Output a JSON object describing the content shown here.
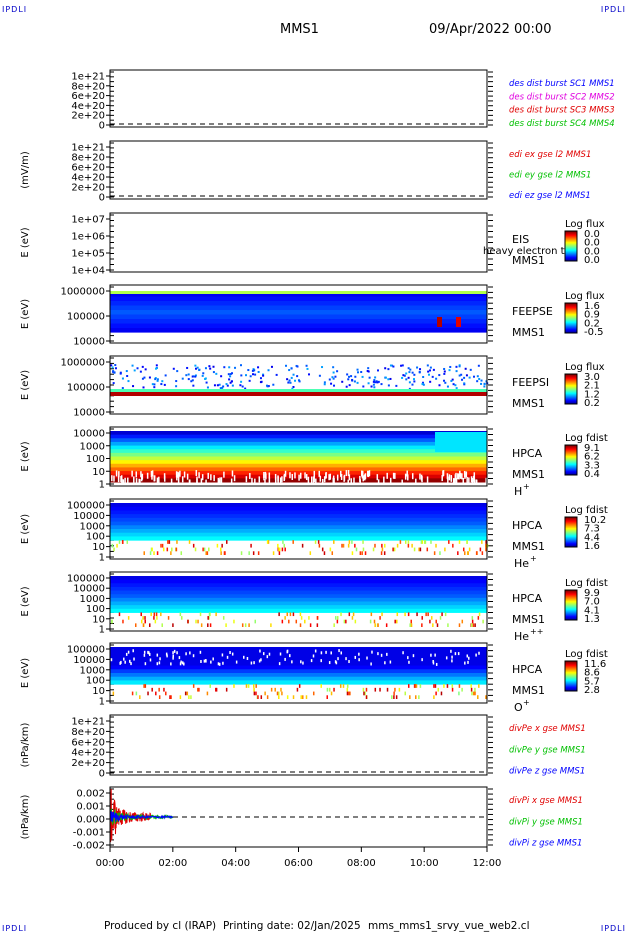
{
  "corners": {
    "top_left": "IPDLI",
    "top_right": "IPDLI",
    "bottom_left": "IPDLI",
    "bottom_right": "IPDLI"
  },
  "header": {
    "spacecraft": "MMS1",
    "date": "09/Apr/2022 00:00"
  },
  "footer": {
    "producer": "Produced by cl (IRAP)",
    "printing_date": "Printing date: 02/Jan/2025",
    "script": "mms_mms1_srvy_vue_web2.cl"
  },
  "colors": {
    "cl_blue": "#0000c8",
    "red": "#e00000",
    "green": "#00c000",
    "magenta": "#e000e0",
    "blue": "#0000ff"
  },
  "chart_data": [
    {
      "type": "line",
      "panel": "des-dist-burst",
      "ylabel": "",
      "yticks": [
        "1e+21",
        "8e+20",
        "6e+20",
        "4e+20",
        "2e+20",
        "0"
      ],
      "ylim": [
        0,
        1e+21
      ],
      "legend": [
        {
          "text": "des dist burst SC1 MMS1",
          "color": "#0000ff"
        },
        {
          "text": "des dist burst SC2 MMS2",
          "color": "#e000e0"
        },
        {
          "text": "des dist burst SC3 MMS3",
          "color": "#e00000"
        },
        {
          "text": "des dist burst SC4 MMS4",
          "color": "#00c000"
        }
      ],
      "series": [],
      "zero_line": true
    },
    {
      "type": "line",
      "panel": "edi-e-gse",
      "ylabel": "(mV/m)",
      "yticks": [
        "1e+21",
        "8e+20",
        "6e+20",
        "4e+20",
        "2e+20",
        "0"
      ],
      "ylim": [
        0,
        1e+21
      ],
      "legend": [
        {
          "text": "edi ex gse l2 MMS1",
          "color": "#e00000"
        },
        {
          "text": "edi ey gse l2 MMS1",
          "color": "#00c000"
        },
        {
          "text": "edi ez gse l2 MMS1",
          "color": "#0000ff"
        }
      ],
      "series": [],
      "zero_line": true
    },
    {
      "type": "heatmap",
      "panel": "eis",
      "ylabel": "E (eV)",
      "yticks": [
        "1e+07",
        "1e+06",
        "1e+05",
        "1e+04"
      ],
      "labels": [
        "EIS",
        "MMS1"
      ],
      "overlay_text": "heavy electron to",
      "colorbar": {
        "title": "Log flux",
        "ticks": [
          "0.0",
          "0.0",
          "0.0",
          "0.0"
        ]
      }
    },
    {
      "type": "heatmap",
      "panel": "feeps-e",
      "ylabel": "E (eV)",
      "yticks": [
        "1000000",
        "100000",
        "10000"
      ],
      "labels": [
        "FEEPSE",
        "MMS1"
      ],
      "colorbar": {
        "title": "Log flux",
        "ticks": [
          "1.6",
          "0.9",
          "0.2",
          "-0.5"
        ]
      }
    },
    {
      "type": "heatmap",
      "panel": "feeps-i",
      "ylabel": "E (eV)",
      "yticks": [
        "1000000",
        "100000",
        "10000"
      ],
      "labels": [
        "FEEPSI",
        "MMS1"
      ],
      "colorbar": {
        "title": "Log flux",
        "ticks": [
          "3.0",
          "2.1",
          "1.2",
          "0.2"
        ]
      }
    },
    {
      "type": "heatmap",
      "panel": "hpca-h",
      "ylabel": "E (eV)",
      "yticks": [
        "10000",
        "1000",
        "100",
        "10",
        "1"
      ],
      "labels": [
        "HPCA",
        "MMS1"
      ],
      "species": "H",
      "charge": "+",
      "colorbar": {
        "title": "Log fdist",
        "ticks": [
          "9.1",
          "6.2",
          "3.3",
          "0.4"
        ]
      }
    },
    {
      "type": "heatmap",
      "panel": "hpca-he",
      "ylabel": "E (eV)",
      "yticks": [
        "100000",
        "10000",
        "1000",
        "100",
        "10",
        "1"
      ],
      "labels": [
        "HPCA",
        "MMS1"
      ],
      "species": "He",
      "charge": "+",
      "colorbar": {
        "title": "Log fdist",
        "ticks": [
          "10.2",
          "7.3",
          "4.4",
          "1.6"
        ]
      }
    },
    {
      "type": "heatmap",
      "panel": "hpca-he2",
      "ylabel": "E (eV)",
      "yticks": [
        "100000",
        "10000",
        "1000",
        "100",
        "10",
        "1"
      ],
      "labels": [
        "HPCA",
        "MMS1"
      ],
      "species": "He",
      "charge": "++",
      "colorbar": {
        "title": "Log fdist",
        "ticks": [
          "9.9",
          "7.0",
          "4.1",
          "1.3"
        ]
      }
    },
    {
      "type": "heatmap",
      "panel": "hpca-o",
      "ylabel": "E (eV)",
      "yticks": [
        "100000",
        "10000",
        "1000",
        "100",
        "10",
        "1"
      ],
      "labels": [
        "HPCA",
        "MMS1"
      ],
      "species": "O",
      "charge": "+",
      "colorbar": {
        "title": "Log fdist",
        "ticks": [
          "11.6",
          "8.6",
          "5.7",
          "2.8"
        ]
      }
    },
    {
      "type": "line",
      "panel": "divpe",
      "ylabel": "(nPa/km)",
      "yticks": [
        "1e+21",
        "8e+20",
        "6e+20",
        "4e+20",
        "2e+20",
        "0"
      ],
      "ylim": [
        0,
        1e+21
      ],
      "legend": [
        {
          "text": "divPe x gse MMS1",
          "color": "#e00000"
        },
        {
          "text": "divPe y gse MMS1",
          "color": "#00c000"
        },
        {
          "text": "divPe z gse MMS1",
          "color": "#0000ff"
        }
      ],
      "series": [],
      "zero_line": true
    },
    {
      "type": "line",
      "panel": "divpi",
      "ylabel": "(nPa/km)",
      "yticks": [
        "0.002",
        "0.001",
        "0.000",
        "-0.001",
        "-0.002"
      ],
      "ylim": [
        -0.0025,
        0.0025
      ],
      "legend": [
        {
          "text": "divPi x gse MMS1",
          "color": "#e00000"
        },
        {
          "text": "divPi y gse MMS1",
          "color": "#00c000"
        },
        {
          "text": "divPi z gse MMS1",
          "color": "#0000ff"
        }
      ],
      "series": [
        {
          "color": "#e00000",
          "x_hours": [
            0.0,
            1.3
          ],
          "amplitude": 0.0022
        },
        {
          "color": "#00c000",
          "x_hours": [
            0.0,
            2.0
          ],
          "amplitude": 0.0008
        },
        {
          "color": "#0000ff",
          "x_hours": [
            0.0,
            2.0
          ],
          "amplitude": 0.0005
        }
      ],
      "zero_line": true
    }
  ],
  "xaxis": {
    "ticks": [
      "00:00",
      "02:00",
      "04:00",
      "06:00",
      "08:00",
      "10:00",
      "12:00"
    ],
    "range_hours": [
      0,
      12
    ]
  }
}
